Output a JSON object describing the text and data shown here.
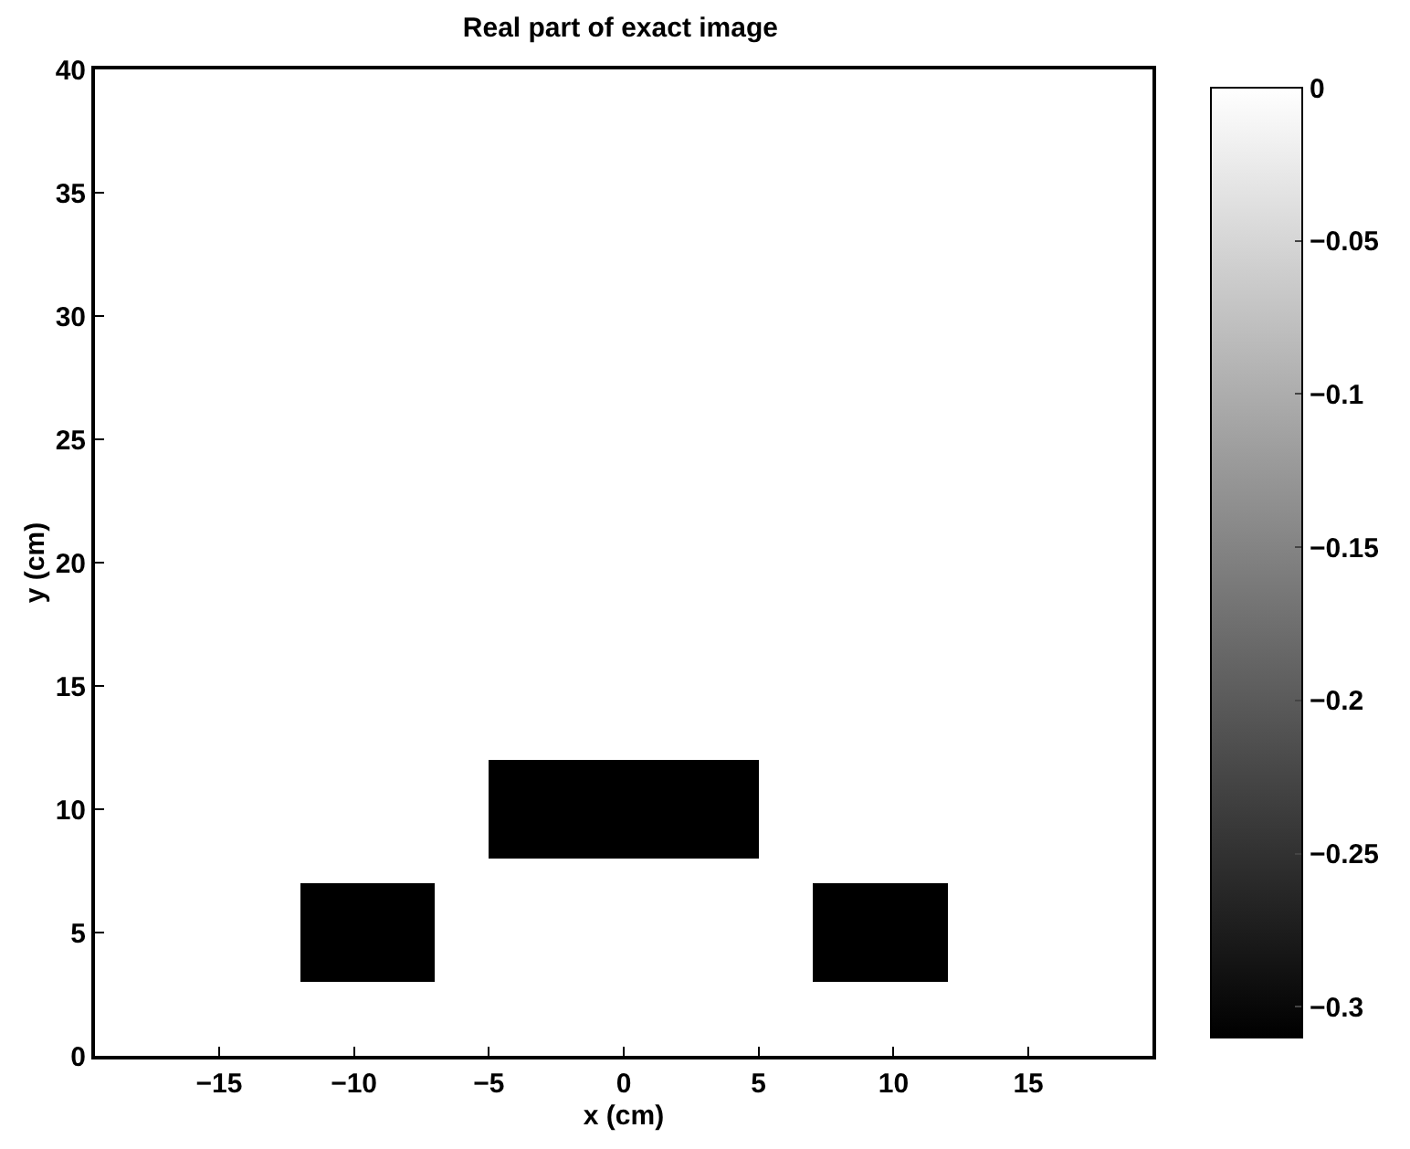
{
  "chart_data": {
    "type": "heatmap",
    "title": "Real part of exact image",
    "xlabel": "x (cm)",
    "ylabel": "y (cm)",
    "x": [
      -19.5,
      -18.5,
      -17.5,
      -16.5,
      -15.5,
      -14.5,
      -13.5,
      -12.5,
      -11.5,
      -10.5,
      -9.5,
      -8.5,
      -7.5,
      -6.5,
      -5.5,
      -4.5,
      -3.5,
      -2.5,
      -1.5,
      -0.5,
      0.5,
      1.5,
      2.5,
      3.5,
      4.5,
      5.5,
      6.5,
      7.5,
      8.5,
      9.5,
      10.5,
      11.5,
      12.5,
      13.5,
      14.5,
      15.5,
      16.5,
      17.5,
      18.5,
      19.5
    ],
    "cells": [
      [
        0,
        0,
        0,
        0,
        0,
        0,
        0,
        0,
        0,
        0,
        0,
        0,
        0,
        0,
        0,
        0,
        0,
        0,
        0,
        0,
        0,
        0,
        0,
        0,
        0,
        0,
        0,
        0,
        0,
        0,
        0,
        0,
        0,
        0,
        0,
        0,
        0,
        0,
        0,
        0
      ],
      [
        0,
        0,
        0,
        0,
        0,
        0,
        0,
        0,
        0,
        0,
        0,
        0,
        0,
        0,
        0,
        0,
        0,
        0,
        0,
        0,
        0,
        0,
        0,
        0,
        0,
        0,
        0,
        0,
        0,
        0,
        0,
        0,
        0,
        0,
        0,
        0,
        0,
        0,
        0,
        0
      ],
      [
        0,
        0,
        0,
        0,
        0,
        0,
        0,
        0,
        0,
        0,
        0,
        0,
        0,
        0,
        0,
        0,
        0,
        0,
        0,
        0,
        0,
        0,
        0,
        0,
        0,
        0,
        0,
        0,
        0,
        0,
        0,
        0,
        0,
        0,
        0,
        0,
        0,
        0,
        0,
        0
      ],
      [
        0,
        0,
        0,
        0,
        0,
        0,
        0,
        0,
        0,
        0,
        0,
        0,
        0,
        0,
        0,
        0,
        0,
        0,
        0,
        0,
        0,
        0,
        0,
        0,
        0,
        0,
        0,
        0,
        0,
        0,
        0,
        0,
        0,
        0,
        0,
        0,
        0,
        0,
        0,
        0
      ],
      [
        0,
        0,
        0,
        0,
        0,
        0,
        0,
        0,
        0,
        0,
        0,
        0,
        0,
        0,
        0,
        0,
        0,
        0,
        0,
        0,
        0,
        0,
        0,
        0,
        0,
        0,
        0,
        0,
        0,
        0,
        0,
        0,
        0,
        0,
        0,
        0,
        0,
        0,
        0,
        0
      ],
      [
        0,
        0,
        0,
        0,
        0,
        0,
        0,
        0,
        0,
        0,
        0,
        0,
        0,
        0,
        0,
        0,
        0,
        0,
        0,
        0,
        0,
        0,
        0,
        0,
        0,
        0,
        0,
        0,
        0,
        0,
        0,
        0,
        0,
        0,
        0,
        0,
        0,
        0,
        0,
        0
      ],
      [
        0,
        0,
        0,
        0,
        0,
        0,
        0,
        0,
        0,
        0,
        0,
        0,
        0,
        0,
        0,
        0,
        0,
        0,
        0,
        0,
        0,
        0,
        0,
        0,
        0,
        0,
        0,
        0,
        0,
        0,
        0,
        0,
        0,
        0,
        0,
        0,
        0,
        0,
        0,
        0
      ],
      [
        0,
        0,
        0,
        0,
        0,
        0,
        0,
        0,
        0,
        0,
        0,
        0,
        0,
        0,
        0,
        0,
        0,
        0,
        0,
        0,
        0,
        0,
        0,
        0,
        0,
        0,
        0,
        0,
        0,
        0,
        0,
        0,
        0,
        0,
        0,
        0,
        0,
        0,
        0,
        0
      ],
      [
        0,
        0,
        0,
        0,
        0,
        0,
        0,
        0,
        0,
        0,
        0,
        0,
        0,
        0,
        0,
        0,
        0,
        0,
        0,
        0,
        0,
        0,
        0,
        0,
        0,
        0,
        0,
        0,
        0,
        0,
        0,
        0,
        0,
        0,
        0,
        0,
        0,
        0,
        0,
        0
      ],
      [
        0,
        0,
        0,
        0,
        0,
        0,
        0,
        0,
        0,
        0,
        0,
        0,
        0,
        0,
        0,
        0,
        0,
        0,
        0,
        0,
        0,
        0,
        0,
        0,
        0,
        0,
        0,
        0,
        0,
        0,
        0,
        0,
        0,
        0,
        0,
        0,
        0,
        0,
        0,
        0
      ],
      [
        0,
        0,
        0,
        0,
        0,
        0,
        0,
        0,
        0,
        0,
        0,
        0,
        0,
        0,
        0,
        0,
        0,
        0,
        0,
        0,
        0,
        0,
        0,
        0,
        0,
        0,
        0,
        0,
        0,
        0,
        0,
        0,
        0,
        0,
        0,
        0,
        0,
        0,
        0,
        0
      ],
      [
        0,
        0,
        0,
        0,
        0,
        0,
        0,
        0,
        0,
        0,
        0,
        0,
        0,
        0,
        0,
        0,
        0,
        0,
        0,
        0,
        0,
        0,
        0,
        0,
        0,
        0,
        0,
        0,
        0,
        0,
        0,
        0,
        0,
        0,
        0,
        0,
        0,
        0,
        0,
        0
      ],
      [
        0,
        0,
        0,
        0,
        0,
        0,
        0,
        0,
        0,
        0,
        0,
        0,
        0,
        0,
        0,
        0,
        0,
        0,
        0,
        0,
        0,
        0,
        0,
        0,
        0,
        0,
        0,
        0,
        0,
        0,
        0,
        0,
        0,
        0,
        0,
        0,
        0,
        0,
        0,
        0
      ],
      [
        0,
        0,
        0,
        0,
        0,
        0,
        0,
        0,
        0,
        0,
        0,
        0,
        0,
        0,
        0,
        0,
        0,
        0,
        0,
        0,
        0,
        0,
        0,
        0,
        0,
        0,
        0,
        0,
        0,
        0,
        0,
        0,
        0,
        0,
        0,
        0,
        0,
        0,
        0,
        0
      ],
      [
        0,
        0,
        0,
        0,
        0,
        0,
        0,
        0,
        0,
        0,
        0,
        0,
        0,
        0,
        0,
        0,
        0,
        0,
        0,
        0,
        0,
        0,
        0,
        0,
        0,
        0,
        0,
        0,
        0,
        0,
        0,
        0,
        0,
        0,
        0,
        0,
        0,
        0,
        0,
        0
      ],
      [
        0,
        0,
        0,
        0,
        0,
        0,
        0,
        0,
        0,
        0,
        0,
        0,
        0,
        0,
        0,
        0,
        0,
        0,
        0,
        0,
        0,
        0,
        0,
        0,
        0,
        0,
        0,
        0,
        0,
        0,
        0,
        0,
        0,
        0,
        0,
        0,
        0,
        0,
        0,
        0
      ],
      [
        0,
        0,
        0,
        0,
        0,
        0,
        0,
        0,
        0,
        0,
        0,
        0,
        0,
        0,
        0,
        0,
        0,
        0,
        0,
        0,
        0,
        0,
        0,
        0,
        0,
        0,
        0,
        0,
        0,
        0,
        0,
        0,
        0,
        0,
        0,
        0,
        0,
        0,
        0,
        0
      ],
      [
        0,
        0,
        0,
        0,
        0,
        0,
        0,
        0,
        0,
        0,
        0,
        0,
        0,
        0,
        0,
        0,
        0,
        0,
        0,
        0,
        0,
        0,
        0,
        0,
        0,
        0,
        0,
        0,
        0,
        0,
        0,
        0,
        0,
        0,
        0,
        0,
        0,
        0,
        0,
        0
      ],
      [
        0,
        0,
        0,
        0,
        0,
        0,
        0,
        0,
        0,
        0,
        0,
        0,
        0,
        0,
        0,
        0,
        0,
        0,
        0,
        0,
        0,
        0,
        0,
        0,
        0,
        0,
        0,
        0,
        0,
        0,
        0,
        0,
        0,
        0,
        0,
        0,
        0,
        0,
        0,
        0
      ],
      [
        0,
        0,
        0,
        0,
        0,
        0,
        0,
        0,
        0,
        0,
        0,
        0,
        0,
        0,
        0,
        0,
        0,
        0,
        0,
        0,
        0,
        0,
        0,
        0,
        0,
        0,
        0,
        0,
        0,
        0,
        0,
        0,
        0,
        0,
        0,
        0,
        0,
        0,
        0,
        0
      ],
      [
        0,
        0,
        0,
        0,
        0,
        0,
        0,
        0,
        0,
        0,
        0,
        0,
        0,
        0,
        0,
        0,
        0,
        0,
        0,
        0,
        0,
        0,
        0,
        0,
        0,
        0,
        0,
        0,
        0,
        0,
        0,
        0,
        0,
        0,
        0,
        0,
        0,
        0,
        0,
        0
      ],
      [
        0,
        0,
        0,
        0,
        0,
        0,
        0,
        0,
        0,
        0,
        0,
        0,
        0,
        0,
        0,
        0,
        0,
        0,
        0,
        0,
        0,
        0,
        0,
        0,
        0,
        0,
        0,
        0,
        0,
        0,
        0,
        0,
        0,
        0,
        0,
        0,
        0,
        0,
        0,
        0
      ],
      [
        0,
        0,
        0,
        0,
        0,
        0,
        0,
        0,
        0,
        0,
        0,
        0,
        0,
        0,
        0,
        0,
        0,
        0,
        0,
        0,
        0,
        0,
        0,
        0,
        0,
        0,
        0,
        0,
        0,
        0,
        0,
        0,
        0,
        0,
        0,
        0,
        0,
        0,
        0,
        0
      ],
      [
        0,
        0,
        0,
        0,
        0,
        0,
        0,
        0,
        0,
        0,
        0,
        0,
        0,
        0,
        0,
        0,
        0,
        0,
        0,
        0,
        0,
        0,
        0,
        0,
        0,
        0,
        0,
        0,
        0,
        0,
        0,
        0,
        0,
        0,
        0,
        0,
        0,
        0,
        0,
        0
      ],
      [
        0,
        0,
        0,
        0,
        0,
        0,
        0,
        0,
        0,
        0,
        0,
        0,
        0,
        0,
        0,
        0,
        0,
        0,
        0,
        0,
        0,
        0,
        0,
        0,
        0,
        0,
        0,
        0,
        0,
        0,
        0,
        0,
        0,
        0,
        0,
        0,
        0,
        0,
        0,
        0
      ],
      [
        0,
        0,
        0,
        0,
        0,
        0,
        0,
        0,
        0,
        0,
        0,
        0,
        0,
        0,
        0,
        0,
        0,
        0,
        0,
        0,
        0,
        0,
        0,
        0,
        0,
        0,
        0,
        0,
        0,
        0,
        0,
        0,
        0,
        0,
        0,
        0,
        0,
        0,
        0,
        0
      ],
      [
        0,
        0,
        0,
        0,
        0,
        0,
        0,
        0,
        0,
        0,
        0,
        0,
        0,
        0,
        0,
        0,
        0,
        0,
        0,
        0,
        0,
        0,
        0,
        0,
        0,
        0,
        0,
        0,
        0,
        0,
        0,
        0,
        0,
        0,
        0,
        0,
        0,
        0,
        0,
        0
      ],
      [
        0,
        0,
        0,
        0,
        0,
        0,
        0,
        0,
        0,
        0,
        0,
        0,
        0,
        0,
        0,
        0,
        0,
        0,
        0,
        0,
        0,
        0,
        0,
        0,
        0,
        0,
        0,
        0,
        0,
        0,
        0,
        0,
        0,
        0,
        0,
        0,
        0,
        0,
        0,
        0
      ],
      [
        0,
        0,
        0,
        0,
        0,
        0,
        0,
        0,
        0,
        0,
        0,
        0,
        0,
        0,
        0,
        -0.31,
        -0.31,
        -0.31,
        -0.31,
        -0.31,
        -0.31,
        -0.31,
        -0.31,
        -0.31,
        -0.31,
        0,
        0,
        0,
        0,
        0,
        0,
        0,
        0,
        0,
        0,
        0,
        0,
        0,
        0,
        0
      ],
      [
        0,
        0,
        0,
        0,
        0,
        0,
        0,
        0,
        0,
        0,
        0,
        0,
        0,
        0,
        0,
        -0.31,
        -0.31,
        -0.31,
        -0.31,
        -0.31,
        -0.31,
        -0.31,
        -0.31,
        -0.31,
        -0.31,
        0,
        0,
        0,
        0,
        0,
        0,
        0,
        0,
        0,
        0,
        0,
        0,
        0,
        0,
        0
      ],
      [
        0,
        0,
        0,
        0,
        0,
        0,
        0,
        0,
        0,
        0,
        0,
        0,
        0,
        0,
        0,
        -0.31,
        -0.31,
        -0.31,
        -0.31,
        -0.31,
        -0.31,
        -0.31,
        -0.31,
        -0.31,
        -0.31,
        0,
        0,
        0,
        0,
        0,
        0,
        0,
        0,
        0,
        0,
        0,
        0,
        0,
        0,
        0
      ],
      [
        0,
        0,
        0,
        0,
        0,
        0,
        0,
        0,
        0,
        0,
        0,
        0,
        0,
        0,
        0,
        -0.31,
        -0.31,
        -0.31,
        -0.31,
        -0.31,
        -0.31,
        -0.31,
        -0.31,
        -0.31,
        -0.31,
        0,
        0,
        0,
        0,
        0,
        0,
        0,
        0,
        0,
        0,
        0,
        0,
        0,
        0,
        0
      ],
      [
        0,
        0,
        0,
        0,
        0,
        0,
        0,
        0,
        0,
        0,
        0,
        0,
        0,
        0,
        0,
        0,
        0,
        0,
        0,
        0,
        0,
        0,
        0,
        0,
        0,
        0,
        0,
        0,
        0,
        0,
        0,
        0,
        0,
        0,
        0,
        0,
        0,
        0,
        0,
        0
      ],
      [
        0,
        0,
        0,
        0,
        0,
        0,
        0,
        0,
        -0.31,
        -0.31,
        -0.31,
        -0.31,
        -0.31,
        0,
        0,
        0,
        0,
        0,
        0,
        0,
        0,
        0,
        0,
        0,
        0,
        0,
        0,
        -0.31,
        -0.31,
        -0.31,
        -0.31,
        -0.31,
        0,
        0,
        0,
        0,
        0,
        0,
        0,
        0
      ],
      [
        0,
        0,
        0,
        0,
        0,
        0,
        0,
        0,
        -0.31,
        -0.31,
        -0.31,
        -0.31,
        -0.31,
        0,
        0,
        0,
        0,
        0,
        0,
        0,
        0,
        0,
        0,
        0,
        0,
        0,
        0,
        -0.31,
        -0.31,
        -0.31,
        -0.31,
        -0.31,
        0,
        0,
        0,
        0,
        0,
        0,
        0,
        0
      ],
      [
        0,
        0,
        0,
        0,
        0,
        0,
        0,
        0,
        -0.31,
        -0.31,
        -0.31,
        -0.31,
        -0.31,
        0,
        0,
        0,
        0,
        0,
        0,
        0,
        0,
        0,
        0,
        0,
        0,
        0,
        0,
        -0.31,
        -0.31,
        -0.31,
        -0.31,
        -0.31,
        0,
        0,
        0,
        0,
        0,
        0,
        0,
        0
      ],
      [
        0,
        0,
        0,
        0,
        0,
        0,
        0,
        0,
        -0.31,
        -0.31,
        -0.31,
        -0.31,
        -0.31,
        0,
        0,
        0,
        0,
        0,
        0,
        0,
        0,
        0,
        0,
        0,
        0,
        0,
        0,
        -0.31,
        -0.31,
        -0.31,
        -0.31,
        -0.31,
        0,
        0,
        0,
        0,
        0,
        0,
        0,
        0
      ],
      [
        0,
        0,
        0,
        0,
        0,
        0,
        0,
        0,
        0,
        0,
        0,
        0,
        0,
        0,
        0,
        0,
        0,
        0,
        0,
        0,
        0,
        0,
        0,
        0,
        0,
        0,
        0,
        0,
        0,
        0,
        0,
        0,
        0,
        0,
        0,
        0,
        0,
        0,
        0,
        0
      ],
      [
        0,
        0,
        0,
        0,
        0,
        0,
        0,
        0,
        0,
        0,
        0,
        0,
        0,
        0,
        0,
        0,
        0,
        0,
        0,
        0,
        0,
        0,
        0,
        0,
        0,
        0,
        0,
        0,
        0,
        0,
        0,
        0,
        0,
        0,
        0,
        0,
        0,
        0,
        0,
        0
      ],
      [
        0,
        0,
        0,
        0,
        0,
        0,
        0,
        0,
        0,
        0,
        0,
        0,
        0,
        0,
        0,
        0,
        0,
        0,
        0,
        0,
        0,
        0,
        0,
        0,
        0,
        0,
        0,
        0,
        0,
        0,
        0,
        0,
        0,
        0,
        0,
        0,
        0,
        0,
        0,
        0
      ]
    ],
    "xlim": [
      -19.6,
      19.6
    ],
    "ylim": [
      0,
      40
    ],
    "xticks": [
      {
        "value": -15,
        "label": "−15"
      },
      {
        "value": -10,
        "label": "−10"
      },
      {
        "value": -5,
        "label": "−5"
      },
      0,
      5,
      10,
      15
    ],
    "yticks": [
      0,
      5,
      10,
      15,
      20,
      25,
      30,
      35,
      40
    ],
    "clim": [
      -0.31,
      0
    ],
    "cticks": [
      0,
      {
        "value": -0.05,
        "label": "−0.05"
      },
      {
        "value": -0.1,
        "label": "−0.1"
      },
      {
        "value": -0.15,
        "label": "−0.15"
      },
      {
        "value": -0.2,
        "label": "−0.2"
      },
      {
        "value": -0.25,
        "label": "−0.25"
      },
      {
        "value": -0.3,
        "label": "−0.3"
      }
    ]
  }
}
